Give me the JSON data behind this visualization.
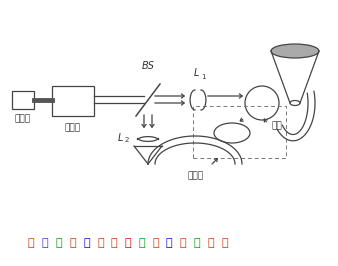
{
  "title": "干涉式光纤温度传感器工作示意图",
  "label_laser": "激光器",
  "label_expander": "扩束器",
  "label_fiber": "光纤",
  "label_temp": "温度场",
  "label_BS": "BS",
  "label_L1": "L",
  "label_L1_sub": "1",
  "label_L2": "L",
  "label_L2_sub": "2",
  "line_color": "#444444",
  "title_colors": [
    "#cc3300",
    "#3333cc",
    "#009900",
    "#cc3300",
    "#0000cc",
    "#cc3300",
    "#cc3300",
    "#cc0000",
    "#009900",
    "#cc3300",
    "#0000cc",
    "#cc3300",
    "#009900",
    "#cc3300"
  ]
}
